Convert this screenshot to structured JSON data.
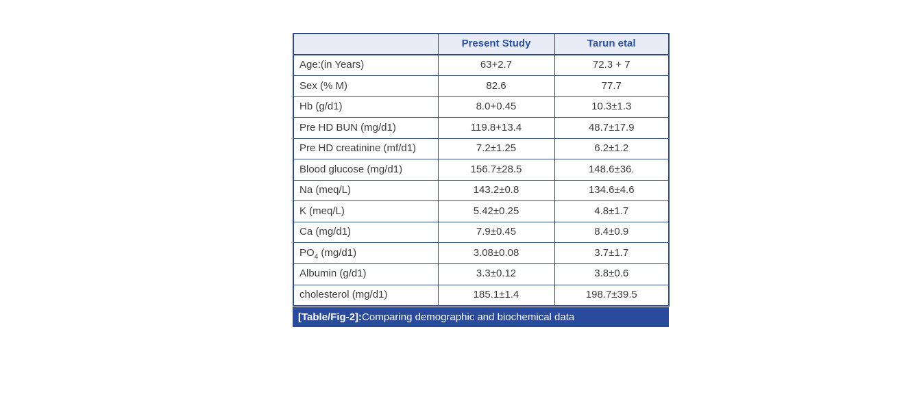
{
  "colors": {
    "border": "#2e4a80",
    "header_bg": "#e9ecf6",
    "header_text": "#2b52a3",
    "caption_bg": "#2a4b9b",
    "caption_text": "#ffffff",
    "body_text": "#3c3c3c",
    "page_bg": "#ffffff"
  },
  "table": {
    "columns": [
      "",
      "Present Study",
      "Tarun etal"
    ],
    "rows": [
      {
        "label": "Age:(in Years)",
        "present": "63+2.7",
        "tarun": "72.3 + 7"
      },
      {
        "label": "Sex (% M)",
        "present": "82.6",
        "tarun": "77.7"
      },
      {
        "label": "Hb (g/d1)",
        "present": "8.0+0.45",
        "tarun": "10.3±1.3"
      },
      {
        "label": "Pre HD BUN (mg/d1)",
        "present": "119.8+13.4",
        "tarun": "48.7±17.9"
      },
      {
        "label": "Pre HD creatinine (mf/d1)",
        "present": "7.2±1.25",
        "tarun": "6.2±1.2"
      },
      {
        "label": "Blood glucose (mg/d1)",
        "present": "156.7±28.5",
        "tarun": "148.6±36."
      },
      {
        "label": "Na (meq/L)",
        "present": "143.2±0.8",
        "tarun": "134.6±4.6"
      },
      {
        "label": "K (meq/L)",
        "present": "5.42±0.25",
        "tarun": "4.8±1.7"
      },
      {
        "label": "Ca (mg/d1)",
        "present": "7.9±0.45",
        "tarun": "8.4±0.9"
      },
      {
        "label": "PO",
        "label_sub": "4",
        "label_suffix": " (mg/d1)",
        "present": "3.08±0.08",
        "tarun": "3.7±1.7"
      },
      {
        "label": "Albumin (g/d1)",
        "present": "3.3±0.12",
        "tarun": "3.8±0.6"
      },
      {
        "label": "cholesterol (mg/d1)",
        "present": "185.1±1.4",
        "tarun": "198.7±39.5"
      }
    ],
    "caption_bold": "[Table/Fig-2]:",
    "caption_rest": " Comparing demographic and biochemical data"
  }
}
